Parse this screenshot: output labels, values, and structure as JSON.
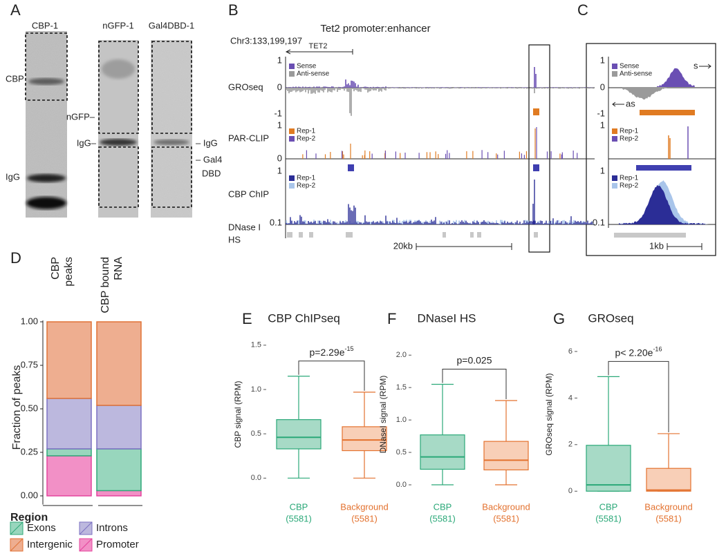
{
  "panels": {
    "A": {
      "letter": "A",
      "lanes": [
        "CBP-1",
        "nGFP-1",
        "Gal4DBD-1"
      ],
      "band_labels": [
        "CBP",
        "IgG",
        "nGFP–",
        "IgG–",
        "– IgG",
        "– Gal4",
        "DBD"
      ]
    },
    "B": {
      "letter": "B",
      "title": "Tet2 promoter:enhancer",
      "locus": "Chr3:133,199,197",
      "gene": "TET2",
      "tracks": [
        [
          "GROseq"
        ],
        [
          "PAR-CLIP"
        ],
        [
          "CBP ChIP"
        ],
        [
          "DNase I",
          "HS"
        ]
      ],
      "gro_legend": [
        {
          "name": "Sense",
          "color": "#6a4fb3"
        },
        {
          "name": "Anti-sense",
          "color": "#9a9a9a"
        }
      ],
      "par_legend": [
        {
          "name": "Rep-1",
          "color": "#e07b22"
        },
        {
          "name": "Rep-2",
          "color": "#6a4fb3"
        }
      ],
      "chip_legend": [
        {
          "name": "Rep-1",
          "color": "#2b2d96"
        },
        {
          "name": "Rep-2",
          "color": "#a9c5ea"
        }
      ],
      "gro_axis": [
        "1",
        "0",
        "-1"
      ],
      "par_axis": [
        "1",
        "0"
      ],
      "chip_axis": [
        "1",
        "0.1"
      ],
      "scale": "20kb"
    },
    "C": {
      "letter": "C",
      "sense": "s",
      "antisense": "as",
      "gro_legend": [
        {
          "name": "Sense",
          "color": "#6a4fb3"
        },
        {
          "name": "Anti-sense",
          "color": "#9a9a9a"
        }
      ],
      "par_legend": [
        {
          "name": "Rep-1",
          "color": "#e07b22"
        },
        {
          "name": "Rep-2",
          "color": "#6a4fb3"
        }
      ],
      "chip_legend": [
        {
          "name": "Rep-1",
          "color": "#2b2d96"
        },
        {
          "name": "Rep-2",
          "color": "#a9c5ea"
        }
      ],
      "gro_axis": [
        "1",
        "0",
        "-1"
      ],
      "par_axis": [
        "1"
      ],
      "chip_axis": [
        "1",
        "0.1"
      ],
      "scale": "1kb"
    }
  },
  "chart_data": [
    {
      "type": "stacked_bar",
      "letter": "D",
      "categories": [
        [
          "CBP",
          "peaks"
        ],
        [
          "CBP bound",
          "RNA"
        ]
      ],
      "series": [
        {
          "name": "Promoter",
          "color": "#f290c6",
          "stroke": "#e4449d",
          "values": [
            0.23,
            0.03
          ]
        },
        {
          "name": "Exons",
          "color": "#98d6bd",
          "stroke": "#2fa878",
          "values": [
            0.04,
            0.24
          ]
        },
        {
          "name": "Introns",
          "color": "#bcb8de",
          "stroke": "#7b70c2",
          "values": [
            0.29,
            0.25
          ]
        },
        {
          "name": "Intergenic",
          "color": "#eeae90",
          "stroke": "#e07235",
          "values": [
            0.44,
            0.48
          ]
        }
      ],
      "ylim": [
        -0.05,
        1.0
      ],
      "yticks": [
        {
          "value": 0,
          "label": "0.00"
        },
        {
          "value": 0.25,
          "label": "0.25"
        },
        {
          "value": 0.5,
          "label": "0.50"
        },
        {
          "value": 0.75,
          "label": "0.75"
        },
        {
          "value": 1,
          "label": "1.00"
        }
      ],
      "ylabel": "Fraction of peaks",
      "legend_title": "Region"
    },
    {
      "type": "box",
      "letter": "E",
      "title": "CBP ChIPseq",
      "ylabel": "CBP signal (RPM)",
      "categories": [
        [
          "CBP",
          "(5581)"
        ],
        [
          "Background",
          "(5581)"
        ]
      ],
      "colors": [
        "#2aa878",
        "#e3712e"
      ],
      "fills": [
        "#a7dac6",
        "#f8cfb7"
      ],
      "boxes": [
        {
          "min": 0,
          "q1": 0.33,
          "median": 0.46,
          "q3": 0.66,
          "max": 1.15
        },
        {
          "min": 0,
          "q1": 0.31,
          "median": 0.43,
          "q3": 0.58,
          "max": 0.97
        }
      ],
      "ylim": [
        -0.2,
        1.6
      ],
      "yticks": [
        {
          "value": 0,
          "label": "0.0"
        },
        {
          "value": 0.5,
          "label": "0.5"
        },
        {
          "value": 1,
          "label": "1.0"
        },
        {
          "value": 1.5,
          "label": "1.5"
        }
      ],
      "pvalue": {
        "text": "p=2.29e",
        "exponent": "-15"
      }
    },
    {
      "type": "box",
      "letter": "F",
      "title": "DNaseI HS",
      "ylabel": "DNaseI signal (RPM)",
      "categories": [
        [
          "CBP",
          "(5581)"
        ],
        [
          "Background",
          "(5581)"
        ]
      ],
      "colors": [
        "#2aa878",
        "#e3712e"
      ],
      "fills": [
        "#a7dac6",
        "#f8cfb7"
      ],
      "boxes": [
        {
          "min": 0,
          "q1": 0.24,
          "median": 0.43,
          "q3": 0.77,
          "max": 1.55
        },
        {
          "min": 0,
          "q1": 0.23,
          "median": 0.38,
          "q3": 0.67,
          "max": 1.3
        }
      ],
      "ylim": [
        -0.17,
        2.29
      ],
      "yticks": [
        {
          "value": 0,
          "label": "0.0"
        },
        {
          "value": 0.5,
          "label": "0.5"
        },
        {
          "value": 1,
          "label": "1.0"
        },
        {
          "value": 1.5,
          "label": "1.5"
        },
        {
          "value": 2,
          "label": "2.0"
        }
      ],
      "pvalue": {
        "text": "p=0.025",
        "exponent": ""
      }
    },
    {
      "type": "box",
      "letter": "G",
      "title": "GROseq",
      "ylabel": "GROseq signal (RPM)",
      "categories": [
        [
          "CBP",
          "(5581)"
        ],
        [
          "Background",
          "(5581)"
        ]
      ],
      "colors": [
        "#2aa878",
        "#e3712e"
      ],
      "fills": [
        "#a7dac6",
        "#f8cfb7"
      ],
      "boxes": [
        {
          "min": 0,
          "q1": 0,
          "median": 0.27,
          "q3": 1.97,
          "max": 4.92
        },
        {
          "min": 0,
          "q1": 0,
          "median": 0.05,
          "q3": 0.98,
          "max": 2.47
        }
      ],
      "ylim": [
        -0.2,
        6.65
      ],
      "yticks": [
        0,
        2,
        4,
        6
      ],
      "pvalue": {
        "text": "p< 2.20e",
        "exponent": "-16"
      }
    }
  ]
}
